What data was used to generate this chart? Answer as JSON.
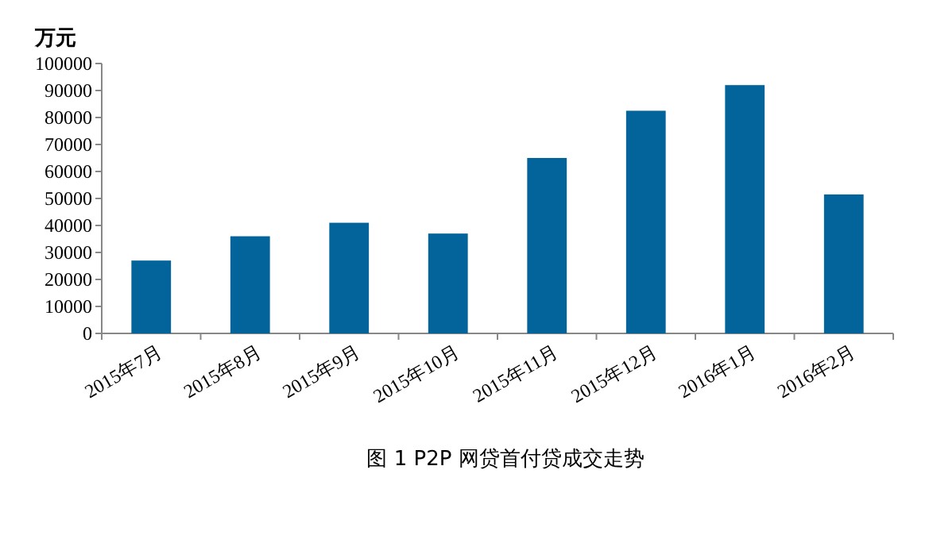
{
  "chart_data": {
    "type": "bar",
    "title": "图 1 P2P 网贷首付贷成交走势",
    "ylabel": "万元",
    "categories": [
      "2015年7月",
      "2015年8月",
      "2015年9月",
      "2015年10月",
      "2015年11月",
      "2015年12月",
      "2016年1月",
      "2016年2月"
    ],
    "values": [
      27000,
      36000,
      41000,
      37000,
      65000,
      82500,
      92000,
      51500
    ],
    "color": "#02649a",
    "ylim": [
      0,
      100000
    ],
    "yticks": [
      0,
      10000,
      20000,
      30000,
      40000,
      50000,
      60000,
      70000,
      80000,
      90000,
      100000
    ]
  }
}
